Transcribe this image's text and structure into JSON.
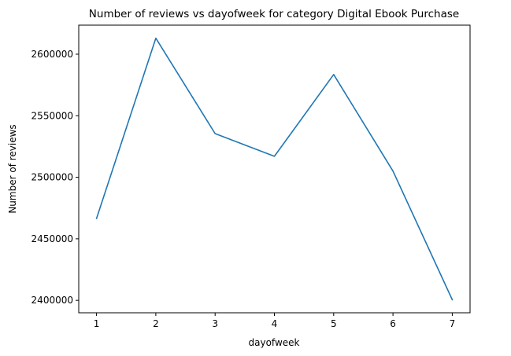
{
  "chart_data": {
    "type": "line",
    "title": "Number of reviews vs dayofweek for category Digital Ebook Purchase",
    "xlabel": "dayofweek",
    "ylabel": "Number of reviews",
    "x": [
      1,
      2,
      3,
      4,
      5,
      6,
      7
    ],
    "series": [
      {
        "name": "",
        "color": "#1f77b4",
        "values": [
          2466500,
          2613000,
          2535500,
          2517000,
          2583500,
          2505000,
          2400500
        ]
      }
    ],
    "xticks": [
      1,
      2,
      3,
      4,
      5,
      6,
      7
    ],
    "xtick_labels": [
      "1",
      "2",
      "3",
      "4",
      "5",
      "6",
      "7"
    ],
    "yticks": [
      2400000,
      2450000,
      2500000,
      2550000,
      2600000
    ],
    "ytick_labels": [
      "2400000",
      "2450000",
      "2500000",
      "2550000",
      "2600000"
    ],
    "xlim": [
      0.7,
      7.3
    ],
    "ylim": [
      2389900,
      2623600
    ],
    "grid": false,
    "legend": "none"
  }
}
